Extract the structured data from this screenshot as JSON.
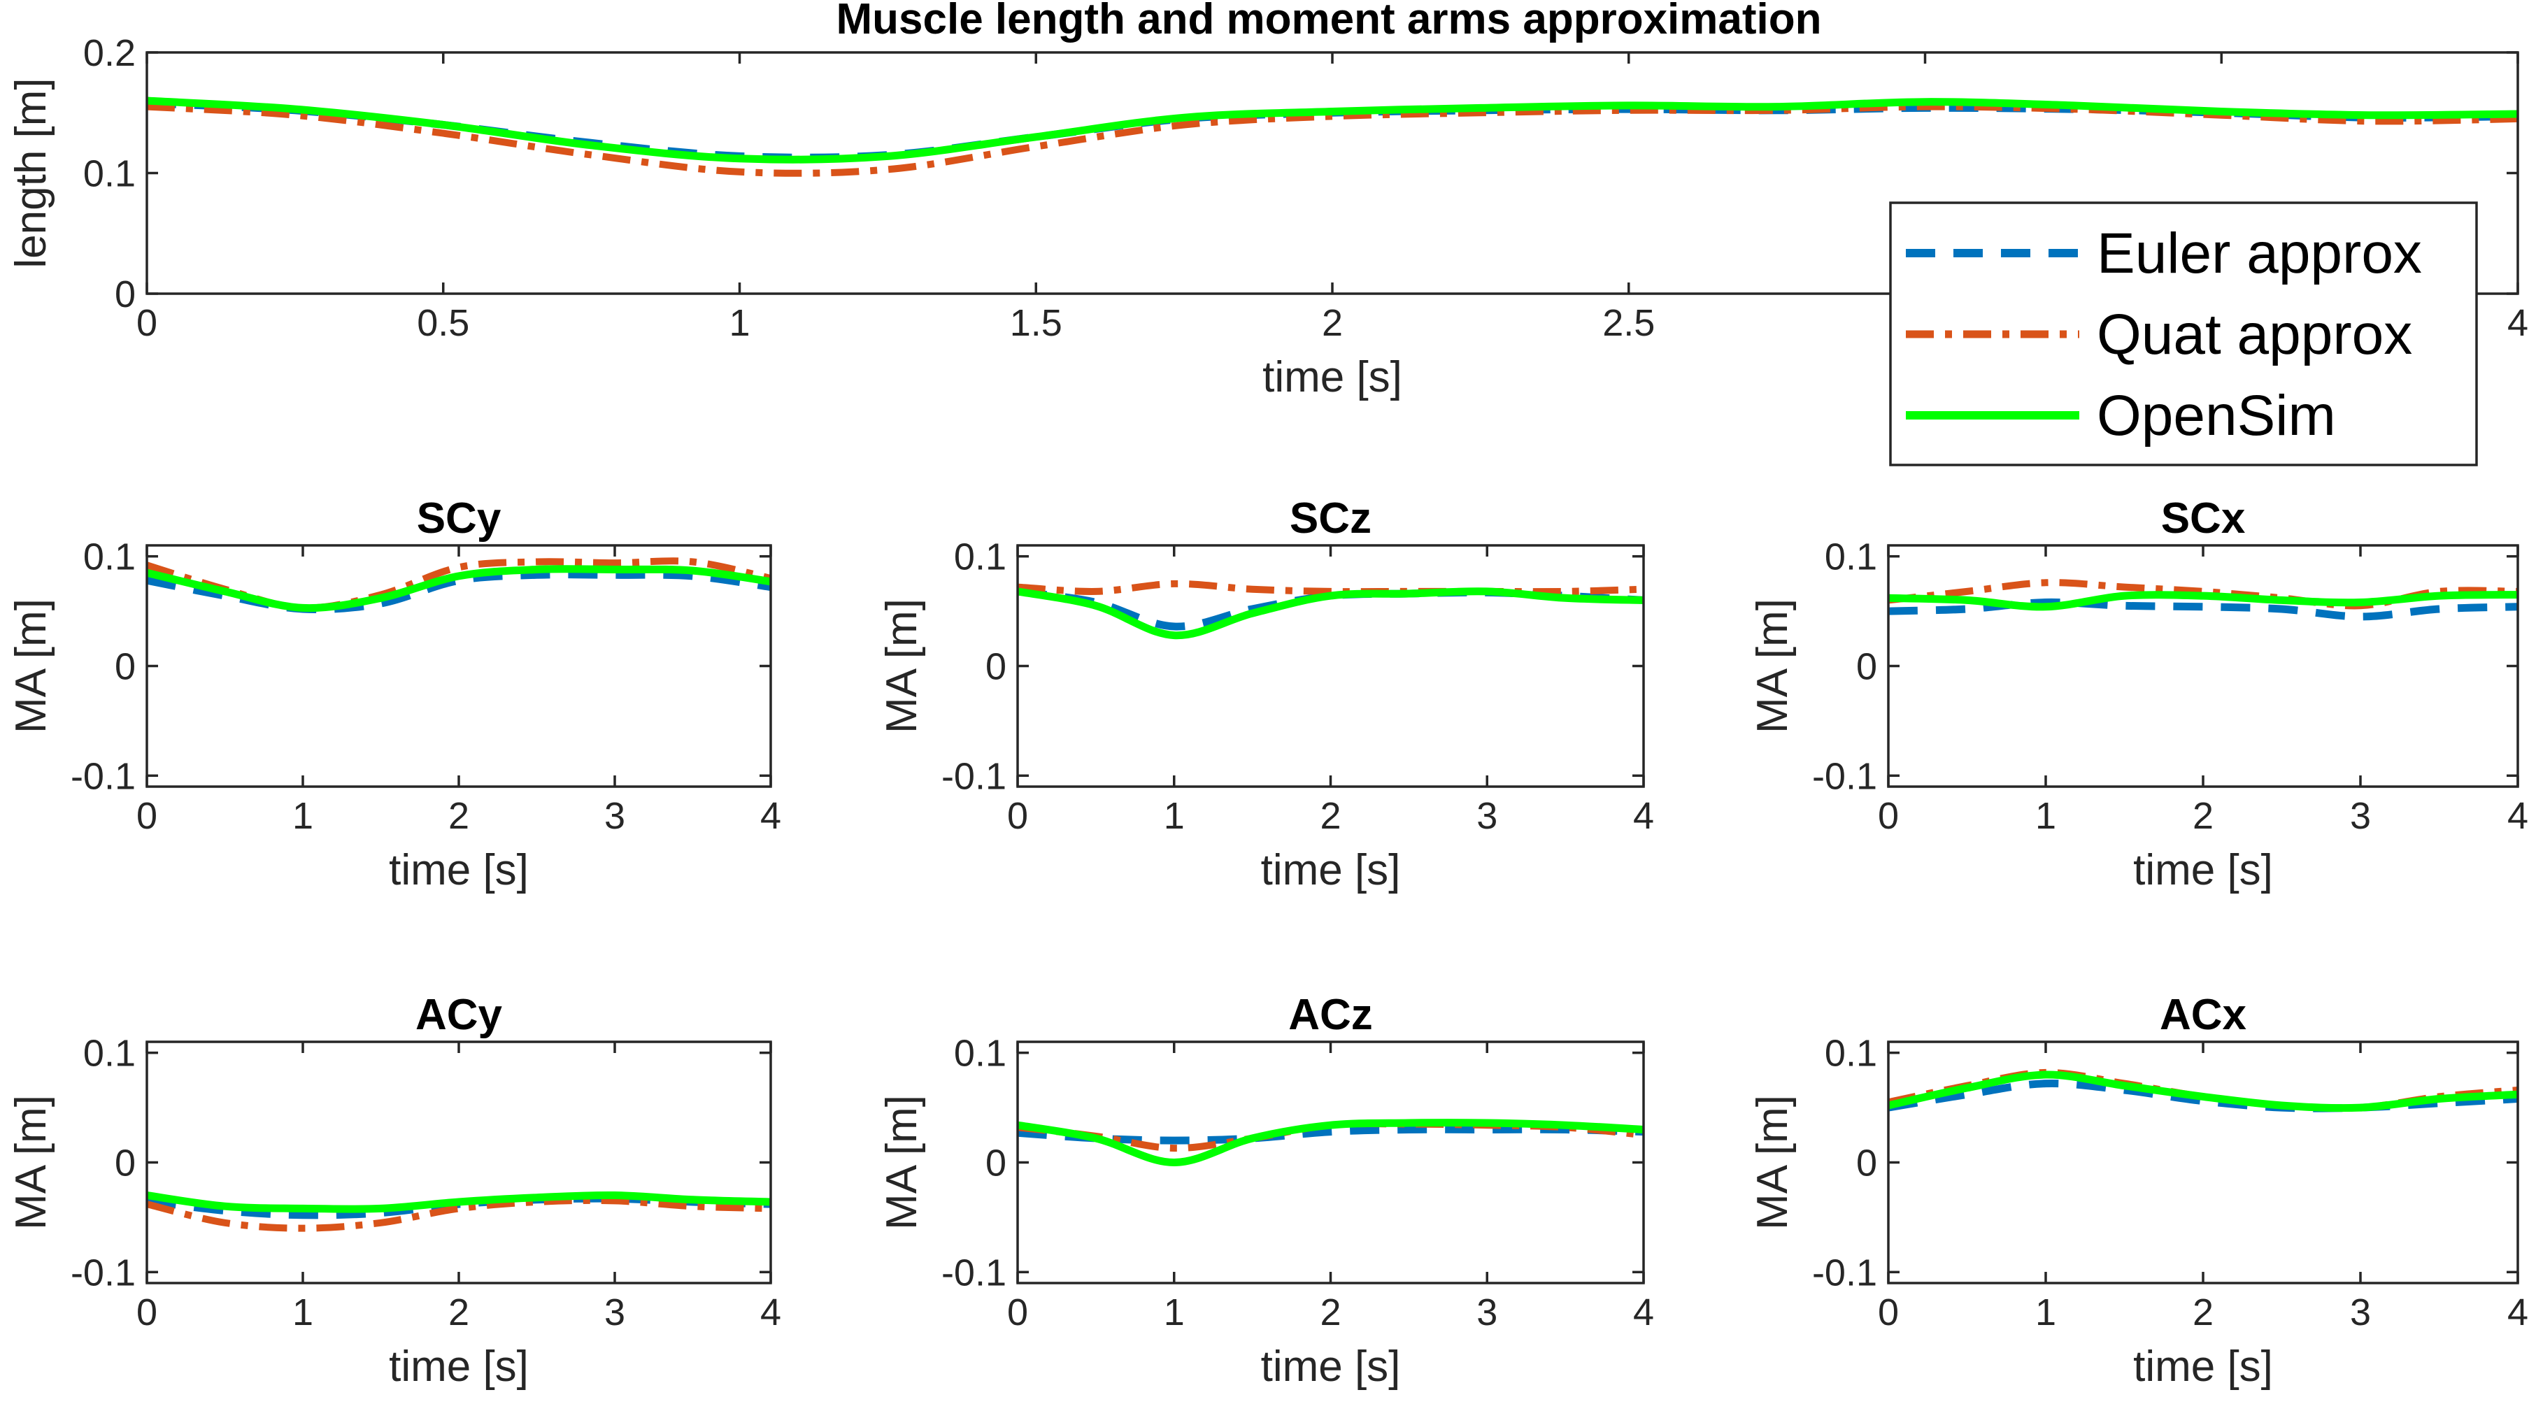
{
  "figure_title": "Muscle length and moment arms approximation",
  "legend": {
    "placement": "top-right of top panel",
    "entries": [
      {
        "label": "Euler approx",
        "color": "#0072BD",
        "style": "dashed"
      },
      {
        "label": "Quat approx",
        "color": "#D95319",
        "style": "dash-dot"
      },
      {
        "label": "OpenSim",
        "color": "#00FF00",
        "style": "solid"
      }
    ]
  },
  "chart_data": [
    {
      "type": "line",
      "title": "",
      "xlabel": "time [s]",
      "ylabel": "length [m]",
      "xlim": [
        0,
        4
      ],
      "ylim": [
        0,
        0.2
      ],
      "xticks": [
        "0",
        "0.5",
        "1",
        "1.5",
        "2",
        "2.5",
        "3",
        "3.5",
        "4"
      ],
      "yticks": [
        "0",
        "0.1",
        "0.2"
      ],
      "series": [
        {
          "name": "Euler approx",
          "x": [
            0,
            0.25,
            0.5,
            0.75,
            1.0,
            1.25,
            1.5,
            1.75,
            2.0,
            2.25,
            2.5,
            2.75,
            3.0,
            3.25,
            3.5,
            3.75,
            4.0
          ],
          "y": [
            0.158,
            0.152,
            0.14,
            0.125,
            0.114,
            0.115,
            0.13,
            0.145,
            0.15,
            0.152,
            0.153,
            0.152,
            0.154,
            0.153,
            0.15,
            0.146,
            0.147
          ]
        },
        {
          "name": "Quat approx",
          "x": [
            0,
            0.25,
            0.5,
            0.75,
            1.0,
            1.25,
            1.5,
            1.75,
            2.0,
            2.25,
            2.5,
            2.75,
            3.0,
            3.25,
            3.5,
            3.75,
            4.0
          ],
          "y": [
            0.155,
            0.148,
            0.133,
            0.115,
            0.101,
            0.103,
            0.122,
            0.14,
            0.147,
            0.15,
            0.152,
            0.152,
            0.155,
            0.153,
            0.148,
            0.143,
            0.145
          ]
        },
        {
          "name": "OpenSim",
          "x": [
            0,
            0.25,
            0.5,
            0.75,
            1.0,
            1.25,
            1.5,
            1.75,
            2.0,
            2.25,
            2.5,
            2.75,
            3.0,
            3.25,
            3.5,
            3.75,
            4.0
          ],
          "y": [
            0.16,
            0.153,
            0.14,
            0.123,
            0.112,
            0.114,
            0.13,
            0.146,
            0.151,
            0.154,
            0.156,
            0.155,
            0.159,
            0.156,
            0.151,
            0.148,
            0.149
          ]
        }
      ]
    },
    {
      "type": "line",
      "title": "SCy",
      "xlabel": "time [s]",
      "ylabel": "MA [m]",
      "xlim": [
        0,
        4
      ],
      "ylim": [
        -0.11,
        0.11
      ],
      "xticks": [
        "0",
        "1",
        "2",
        "3",
        "4"
      ],
      "yticks": [
        "-0.1",
        "0",
        "0.1"
      ],
      "series": [
        {
          "name": "Euler approx",
          "x": [
            0,
            0.5,
            1.0,
            1.5,
            2.0,
            2.5,
            3.0,
            3.5,
            4.0
          ],
          "y": [
            0.078,
            0.064,
            0.052,
            0.057,
            0.078,
            0.083,
            0.083,
            0.082,
            0.072
          ]
        },
        {
          "name": "Quat approx",
          "x": [
            0,
            0.5,
            1.0,
            1.5,
            2.0,
            2.5,
            3.0,
            3.5,
            4.0
          ],
          "y": [
            0.092,
            0.07,
            0.053,
            0.065,
            0.09,
            0.095,
            0.094,
            0.095,
            0.08
          ]
        },
        {
          "name": "OpenSim",
          "x": [
            0,
            0.5,
            1.0,
            1.5,
            2.0,
            2.5,
            3.0,
            3.5,
            4.0
          ],
          "y": [
            0.085,
            0.068,
            0.053,
            0.062,
            0.082,
            0.088,
            0.088,
            0.087,
            0.077
          ]
        }
      ]
    },
    {
      "type": "line",
      "title": "SCz",
      "xlabel": "time [s]",
      "ylabel": "MA [m]",
      "xlim": [
        0,
        4
      ],
      "ylim": [
        -0.11,
        0.11
      ],
      "xticks": [
        "0",
        "1",
        "2",
        "3",
        "4"
      ],
      "yticks": [
        "-0.1",
        "0",
        "0.1"
      ],
      "series": [
        {
          "name": "Euler approx",
          "x": [
            0,
            0.5,
            1.0,
            1.5,
            2.0,
            2.5,
            3.0,
            3.5,
            4.0
          ],
          "y": [
            0.068,
            0.058,
            0.036,
            0.052,
            0.064,
            0.066,
            0.067,
            0.064,
            0.06
          ]
        },
        {
          "name": "Quat approx",
          "x": [
            0,
            0.5,
            1.0,
            1.5,
            2.0,
            2.5,
            3.0,
            3.5,
            4.0
          ],
          "y": [
            0.072,
            0.068,
            0.075,
            0.07,
            0.068,
            0.068,
            0.068,
            0.068,
            0.07
          ]
        },
        {
          "name": "OpenSim",
          "x": [
            0,
            0.5,
            1.0,
            1.5,
            2.0,
            2.5,
            3.0,
            3.5,
            4.0
          ],
          "y": [
            0.068,
            0.055,
            0.028,
            0.048,
            0.064,
            0.066,
            0.068,
            0.062,
            0.06
          ]
        }
      ]
    },
    {
      "type": "line",
      "title": "SCx",
      "xlabel": "time [s]",
      "ylabel": "MA [m]",
      "xlim": [
        0,
        4
      ],
      "ylim": [
        -0.11,
        0.11
      ],
      "xticks": [
        "0",
        "1",
        "2",
        "3",
        "4"
      ],
      "yticks": [
        "-0.1",
        "0",
        "0.1"
      ],
      "series": [
        {
          "name": "Euler approx",
          "x": [
            0,
            0.5,
            1.0,
            1.5,
            2.0,
            2.5,
            3.0,
            3.5,
            4.0
          ],
          "y": [
            0.05,
            0.052,
            0.058,
            0.055,
            0.054,
            0.052,
            0.045,
            0.052,
            0.054
          ]
        },
        {
          "name": "Quat approx",
          "x": [
            0,
            0.5,
            1.0,
            1.5,
            2.0,
            2.5,
            3.0,
            3.5,
            4.0
          ],
          "y": [
            0.06,
            0.068,
            0.076,
            0.072,
            0.068,
            0.062,
            0.055,
            0.068,
            0.068
          ]
        },
        {
          "name": "OpenSim",
          "x": [
            0,
            0.5,
            1.0,
            1.5,
            2.0,
            2.5,
            3.0,
            3.5,
            4.0
          ],
          "y": [
            0.062,
            0.06,
            0.054,
            0.064,
            0.064,
            0.06,
            0.058,
            0.064,
            0.065
          ]
        }
      ]
    },
    {
      "type": "line",
      "title": "ACy",
      "xlabel": "time [s]",
      "ylabel": "MA [m]",
      "xlim": [
        0,
        4
      ],
      "ylim": [
        -0.11,
        0.11
      ],
      "xticks": [
        "0",
        "1",
        "2",
        "3",
        "4"
      ],
      "yticks": [
        "-0.1",
        "0",
        "0.1"
      ],
      "series": [
        {
          "name": "Euler approx",
          "x": [
            0,
            0.5,
            1.0,
            1.5,
            2.0,
            2.5,
            3.0,
            3.5,
            4.0
          ],
          "y": [
            -0.035,
            -0.044,
            -0.048,
            -0.046,
            -0.038,
            -0.034,
            -0.033,
            -0.036,
            -0.038
          ]
        },
        {
          "name": "Quat approx",
          "x": [
            0,
            0.5,
            1.0,
            1.5,
            2.0,
            2.5,
            3.0,
            3.5,
            4.0
          ],
          "y": [
            -0.038,
            -0.055,
            -0.06,
            -0.055,
            -0.042,
            -0.036,
            -0.035,
            -0.04,
            -0.042
          ]
        },
        {
          "name": "OpenSim",
          "x": [
            0,
            0.5,
            1.0,
            1.5,
            2.0,
            2.5,
            3.0,
            3.5,
            4.0
          ],
          "y": [
            -0.03,
            -0.04,
            -0.042,
            -0.042,
            -0.036,
            -0.032,
            -0.03,
            -0.034,
            -0.036
          ]
        }
      ]
    },
    {
      "type": "line",
      "title": "ACz",
      "xlabel": "time [s]",
      "ylabel": "MA [m]",
      "xlim": [
        0,
        4
      ],
      "ylim": [
        -0.11,
        0.11
      ],
      "xticks": [
        "0",
        "1",
        "2",
        "3",
        "4"
      ],
      "yticks": [
        "-0.1",
        "0",
        "0.1"
      ],
      "series": [
        {
          "name": "Euler approx",
          "x": [
            0,
            0.5,
            1.0,
            1.5,
            2.0,
            2.5,
            3.0,
            3.5,
            4.0
          ],
          "y": [
            0.027,
            0.022,
            0.02,
            0.022,
            0.028,
            0.03,
            0.03,
            0.03,
            0.028
          ]
        },
        {
          "name": "Quat approx",
          "x": [
            0,
            0.5,
            1.0,
            1.5,
            2.0,
            2.5,
            3.0,
            3.5,
            4.0
          ],
          "y": [
            0.032,
            0.024,
            0.013,
            0.022,
            0.034,
            0.035,
            0.034,
            0.032,
            0.025
          ]
        },
        {
          "name": "OpenSim",
          "x": [
            0,
            0.5,
            1.0,
            1.5,
            2.0,
            2.5,
            3.0,
            3.5,
            4.0
          ],
          "y": [
            0.034,
            0.022,
            0.0,
            0.022,
            0.034,
            0.036,
            0.036,
            0.034,
            0.03
          ]
        }
      ]
    },
    {
      "type": "line",
      "title": "ACx",
      "xlabel": "time [s]",
      "ylabel": "MA [m]",
      "xlim": [
        0,
        4
      ],
      "ylim": [
        -0.11,
        0.11
      ],
      "xticks": [
        "0",
        "1",
        "2",
        "3",
        "4"
      ],
      "yticks": [
        "-0.1",
        "0",
        "0.1"
      ],
      "series": [
        {
          "name": "Euler approx",
          "x": [
            0,
            0.5,
            1.0,
            1.5,
            2.0,
            2.5,
            3.0,
            3.5,
            4.0
          ],
          "y": [
            0.05,
            0.062,
            0.072,
            0.066,
            0.056,
            0.05,
            0.05,
            0.054,
            0.058
          ]
        },
        {
          "name": "Quat approx",
          "x": [
            0,
            0.5,
            1.0,
            1.5,
            2.0,
            2.5,
            3.0,
            3.5,
            4.0
          ],
          "y": [
            0.055,
            0.07,
            0.082,
            0.072,
            0.06,
            0.052,
            0.05,
            0.06,
            0.066
          ]
        },
        {
          "name": "OpenSim",
          "x": [
            0,
            0.5,
            1.0,
            1.5,
            2.0,
            2.5,
            3.0,
            3.5,
            4.0
          ],
          "y": [
            0.052,
            0.068,
            0.08,
            0.07,
            0.06,
            0.052,
            0.05,
            0.058,
            0.062
          ]
        }
      ]
    }
  ]
}
